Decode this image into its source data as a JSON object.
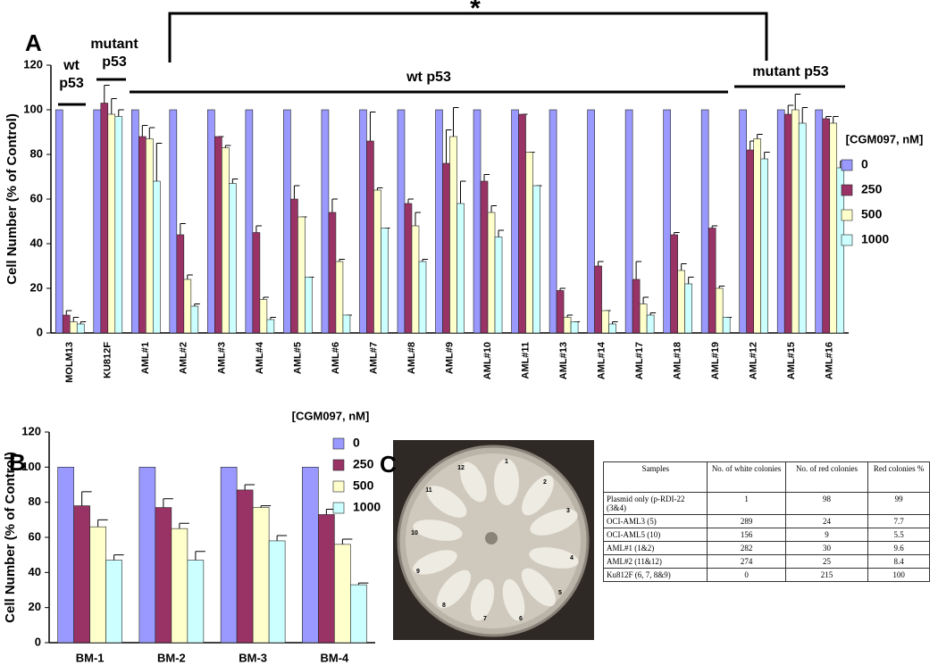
{
  "chart_data": [
    {
      "type": "bar",
      "label": "A",
      "y_label": "Cell Number (% of Control)",
      "legend_title": "[CGM097, nM]",
      "annotations": [
        "*",
        "wt p53",
        "mutant p53",
        "wt p53",
        "mutant p53"
      ],
      "categories": [
        "MOLM13",
        "KU812F",
        "AML#1",
        "AML#2",
        "AML#3",
        "AML#4",
        "AML#5",
        "AML#6",
        "AML#7",
        "AML#8",
        "AML#9",
        "AML#10",
        "AML#11",
        "AML#13",
        "AML#14",
        "AML#17",
        "AML#18",
        "AML#19",
        "AML#12",
        "AML#15",
        "AML#16"
      ],
      "series": [
        {
          "name": "0",
          "color": "#9999ff",
          "values": [
            100,
            100,
            100,
            100,
            100,
            100,
            100,
            100,
            100,
            100,
            100,
            100,
            100,
            100,
            100,
            100,
            100,
            100,
            100,
            100,
            100
          ]
        },
        {
          "name": "250",
          "color": "#993366",
          "values": [
            8,
            103,
            88,
            44,
            88,
            45,
            60,
            54,
            86,
            58,
            76,
            68,
            98,
            19,
            30,
            24,
            44,
            47,
            82,
            98,
            96
          ],
          "errors": [
            2,
            8,
            5,
            5,
            0,
            3,
            6,
            6,
            13,
            2,
            15,
            3,
            0,
            1,
            2,
            8,
            1,
            1,
            4,
            4,
            1
          ]
        },
        {
          "name": "500",
          "color": "#ffffcc",
          "values": [
            5,
            98,
            87,
            24,
            83,
            15,
            52,
            32,
            64,
            48,
            88,
            54,
            81,
            7,
            10,
            13,
            28,
            20,
            87,
            100,
            94
          ],
          "errors": [
            2,
            7,
            5,
            2,
            1,
            1,
            0,
            1,
            1,
            6,
            13,
            3,
            0,
            1,
            0,
            3,
            3,
            1,
            2,
            7,
            3
          ]
        },
        {
          "name": "1000",
          "color": "#ccffff",
          "values": [
            4,
            97,
            68,
            12,
            67,
            6,
            25,
            8,
            47,
            32,
            58,
            43,
            66,
            5,
            4,
            8,
            22,
            7,
            78,
            94,
            74
          ],
          "errors": [
            1,
            3,
            17,
            1,
            2,
            1,
            0,
            0,
            0,
            1,
            10,
            3,
            0,
            0,
            1,
            1,
            3,
            0,
            3,
            7,
            3
          ]
        }
      ],
      "ylim": [
        0,
        120
      ],
      "yticks": [
        0,
        20,
        40,
        60,
        80,
        100,
        120
      ]
    },
    {
      "type": "bar",
      "label": "B",
      "y_label": "Cell Number (% of Control)",
      "legend_title": "[CGM097, nM]",
      "categories": [
        "BM-1",
        "BM-2",
        "BM-3",
        "BM-4"
      ],
      "series": [
        {
          "name": "0",
          "color": "#9999ff",
          "values": [
            100,
            100,
            100,
            100
          ]
        },
        {
          "name": "250",
          "color": "#993366",
          "values": [
            78,
            77,
            87,
            73
          ],
          "errors": [
            8,
            5,
            3,
            3
          ]
        },
        {
          "name": "500",
          "color": "#ffffcc",
          "values": [
            66,
            65,
            77,
            56
          ],
          "errors": [
            4,
            3,
            1,
            3
          ]
        },
        {
          "name": "1000",
          "color": "#ccffff",
          "values": [
            47,
            47,
            58,
            33
          ],
          "errors": [
            3,
            5,
            3,
            1
          ]
        }
      ],
      "ylim": [
        0,
        120
      ],
      "yticks": [
        0,
        20,
        40,
        60,
        80,
        100,
        120
      ]
    }
  ],
  "table": {
    "label": "C",
    "header": [
      "Samples",
      "No. of white colonies",
      "No. of red colonies",
      "Red colonies %"
    ],
    "rows": [
      [
        "Plasmid only (p-RDI-22 (3&4)",
        1,
        98,
        99
      ],
      [
        "OCI-AML3 (5)",
        289,
        24,
        7.7
      ],
      [
        "OCI-AML5 (10)",
        156,
        9,
        5.5
      ],
      [
        "AML#1 (1&2)",
        282,
        30,
        9.6
      ],
      [
        "AML#2 (11&12)",
        274,
        25,
        8.4
      ],
      [
        "Ku812F (6, 7, 8&9)",
        0,
        215,
        100
      ]
    ]
  },
  "dish_labels": [
    "1",
    "2",
    "3",
    "4",
    "5",
    "6",
    "7",
    "8",
    "9",
    "10",
    "11",
    "12"
  ]
}
